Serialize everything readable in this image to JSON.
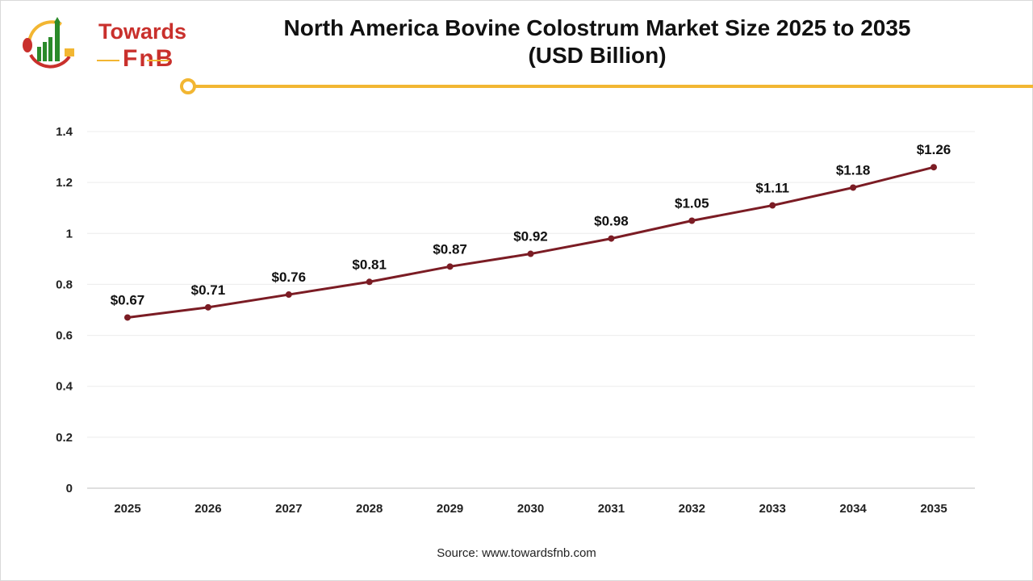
{
  "logo": {
    "line1": "Towards",
    "line2": "FnB"
  },
  "title_line1": "North America Bovine Colostrum Market Size 2025 to 2035",
  "title_line2": "(USD Billion)",
  "source": "Source: www.towardsfnb.com",
  "colors": {
    "line": "#7b1c24",
    "accent": "#f2b632",
    "brand": "#c9302c"
  },
  "chart_data": {
    "type": "line",
    "categories": [
      "2025",
      "2026",
      "2027",
      "2028",
      "2029",
      "2030",
      "2031",
      "2032",
      "2033",
      "2034",
      "2035"
    ],
    "series": [
      {
        "values": [
          0.67,
          0.71,
          0.76,
          0.81,
          0.87,
          0.92,
          0.98,
          1.05,
          1.11,
          1.18,
          1.26
        ]
      }
    ],
    "data_labels": [
      "$0.67",
      "$0.71",
      "$0.76",
      "$0.81",
      "$0.87",
      "$0.92",
      "$0.98",
      "$1.05",
      "$1.11",
      "$1.18",
      "$1.26"
    ],
    "ylim": [
      0,
      1.4
    ],
    "yticks": [
      "0",
      "0.2",
      "0.4",
      "0.6",
      "0.8",
      "1",
      "1.2",
      "1.4"
    ],
    "grid": true,
    "legend": "none"
  }
}
